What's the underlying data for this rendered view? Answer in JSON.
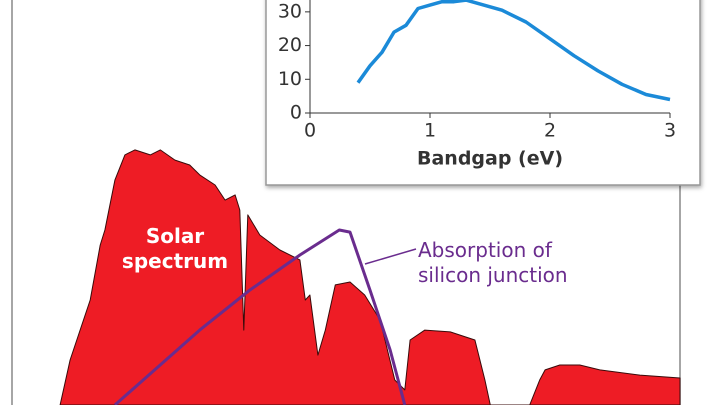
{
  "chart_data": [
    {
      "type": "area",
      "xlim": [
        0,
        100
      ],
      "ylim": [
        0,
        100
      ],
      "annotations": [
        "Solar spectrum",
        "Absorption of silicon junction"
      ],
      "series": [
        {
          "name": "Solar spectrum",
          "mark": "area",
          "color": "#ee1c25",
          "x": [
            7.2,
            8.7,
            10.2,
            11.7,
            13.2,
            13.9,
            15.4,
            16.9,
            18.4,
            20.7,
            22.2,
            24.4,
            26.6,
            28.1,
            30.4,
            31.9,
            33.4,
            34.1,
            34.7,
            35.3,
            37.1,
            40.1,
            43.1,
            43.9,
            44.6,
            45.8,
            46.9,
            48.4,
            50.6,
            52.8,
            55.1,
            57.3,
            58.8,
            59.6,
            61.8,
            65.6,
            69.3,
            70.8,
            71.6,
            77.5,
            79.0,
            79.8,
            82.0,
            85.0,
            88.0,
            94.0,
            100
          ],
          "values": [
            0,
            17.3,
            28.8,
            40.4,
            61.5,
            67.3,
            86.5,
            96.2,
            98.1,
            96.2,
            98.1,
            94.2,
            92.3,
            88.5,
            84.6,
            78.8,
            80.8,
            75,
            28.8,
            73.1,
            65.4,
            59.6,
            55.8,
            40.4,
            42.3,
            19.2,
            28.8,
            46.2,
            47.3,
            42.3,
            32.7,
            9.6,
            5.8,
            25,
            28.8,
            28.1,
            25,
            9.6,
            0,
            0,
            9.6,
            13.5,
            15.4,
            15.4,
            13.5,
            11.5,
            10.4
          ]
        },
        {
          "name": "Absorption of silicon junction",
          "mark": "line",
          "color": "#6a2c8e",
          "x": [
            15.4,
            28.1,
            35.6,
            43.1,
            49.0,
            50.6,
            53.6,
            56.6,
            58.8
          ],
          "values": [
            0,
            28.8,
            44.2,
            57.7,
            67.3,
            66.5,
            44.2,
            21.2,
            0
          ]
        }
      ]
    },
    {
      "type": "line",
      "x_label": "Bandgap (eV)",
      "xlim": [
        0,
        3
      ],
      "xticks": [
        0,
        1,
        2,
        3
      ],
      "ylim": [
        0,
        35
      ],
      "yticks": [
        0,
        10,
        20,
        30
      ],
      "series": [
        {
          "color": "#1b8ad8",
          "x": [
            0.4,
            0.5,
            0.6,
            0.7,
            0.8,
            0.9,
            1.0,
            1.1,
            1.2,
            1.3,
            1.4,
            1.6,
            1.8,
            2.0,
            2.2,
            2.4,
            2.6,
            2.8,
            3.0
          ],
          "values": [
            9,
            14,
            18,
            24,
            26,
            31,
            32,
            33,
            33,
            33.5,
            32.5,
            30.5,
            27,
            22,
            17,
            12.5,
            8.5,
            5.5,
            4
          ]
        }
      ]
    }
  ]
}
